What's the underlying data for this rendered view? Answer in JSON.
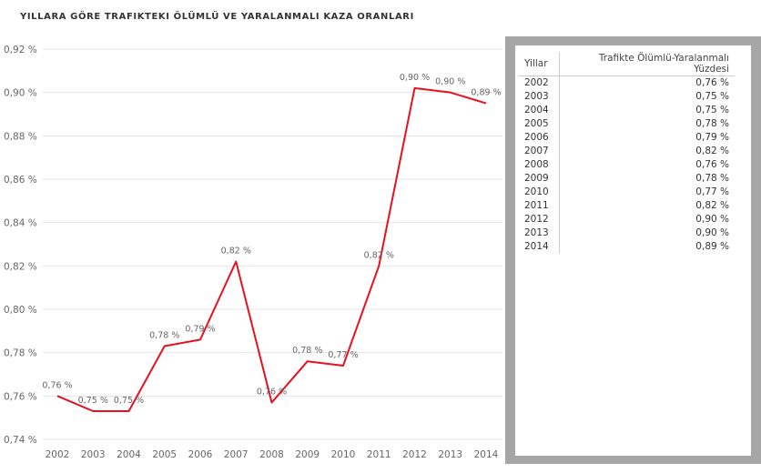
{
  "chart_data": {
    "type": "line",
    "title": "YILLARA GÖRE TRAFIKTEKI ÖLÜMLÜ VE YARALANMALI KAZA ORANLARI",
    "xlabel": "",
    "ylabel": "",
    "categories": [
      "2002",
      "2003",
      "2004",
      "2005",
      "2006",
      "2007",
      "2008",
      "2009",
      "2010",
      "2011",
      "2012",
      "2013",
      "2014"
    ],
    "series": [
      {
        "name": "Trafikte Ölümlü-Yaralanmalı Yüzdesi",
        "color": "#e8101e",
        "values": [
          0.76,
          0.753,
          0.753,
          0.783,
          0.786,
          0.822,
          0.757,
          0.776,
          0.774,
          0.82,
          0.902,
          0.9,
          0.895
        ],
        "labels": [
          "0,76 %",
          "0,75 %",
          "0,75 %",
          "0,78 %",
          "0,79 %",
          "0,82 %",
          "0,76 %",
          "0,78 %",
          "0,77 %",
          "0,82 %",
          "0,90 %",
          "0,90 %",
          "0,89 %"
        ]
      }
    ],
    "ylim": [
      0.74,
      0.92
    ],
    "yticks": [
      0.74,
      0.76,
      0.78,
      0.8,
      0.82,
      0.84,
      0.86,
      0.88,
      0.9,
      0.92
    ],
    "ytick_labels": [
      "0,74 %",
      "0,76 %",
      "0,78 %",
      "0,80 %",
      "0,82 %",
      "0,84 %",
      "0,86 %",
      "0,88 %",
      "0,90 %",
      "0,92 %"
    ],
    "grid": true
  },
  "table": {
    "headers": [
      "Yillar",
      "Trafikte Ölümlü-Yaralanmalı Yüzdesi"
    ],
    "rows": [
      [
        "2002",
        "0,76 %"
      ],
      [
        "2003",
        "0,75 %"
      ],
      [
        "2004",
        "0,75 %"
      ],
      [
        "2005",
        "0,78 %"
      ],
      [
        "2006",
        "0,79 %"
      ],
      [
        "2007",
        "0,82 %"
      ],
      [
        "2008",
        "0,76 %"
      ],
      [
        "2009",
        "0,78 %"
      ],
      [
        "2010",
        "0,77 %"
      ],
      [
        "2011",
        "0,82 %"
      ],
      [
        "2012",
        "0,90 %"
      ],
      [
        "2013",
        "0,90 %"
      ],
      [
        "2014",
        "0,89 %"
      ]
    ]
  }
}
